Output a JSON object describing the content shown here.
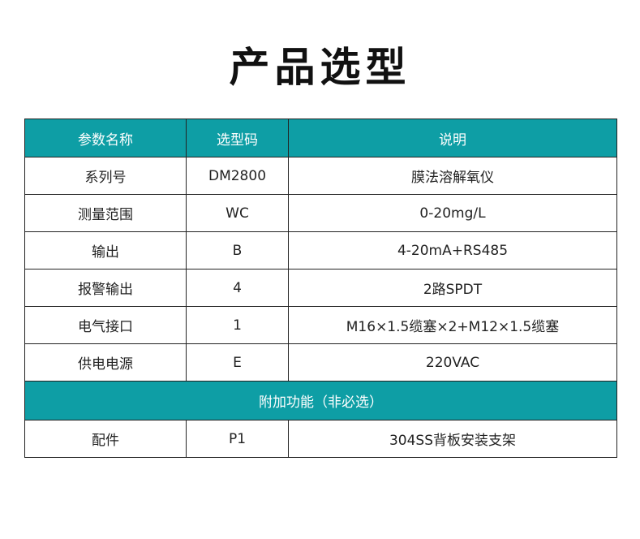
{
  "title": "产品选型",
  "headers": [
    "参数名称",
    "选型码",
    "说明"
  ],
  "rows": [
    [
      "系列号",
      "DM2800",
      "膜法溶解氧仪"
    ],
    [
      "测量范围",
      "WC",
      "0-20mg/L"
    ],
    [
      "输出",
      "B",
      "4-20mA+RS485"
    ],
    [
      "报警输出",
      "4",
      "2路SPDT"
    ],
    [
      "电气接口",
      "1",
      "M16×1.5缆塞×2+M12×1.5缆塞"
    ],
    [
      "供电电源",
      "E",
      "220VAC"
    ]
  ],
  "section": "附加功能（非必选）",
  "extra_rows": [
    [
      "配件",
      "P1",
      "304SS背板安装支架"
    ]
  ],
  "colors": {
    "header": "#0e9ea5"
  }
}
